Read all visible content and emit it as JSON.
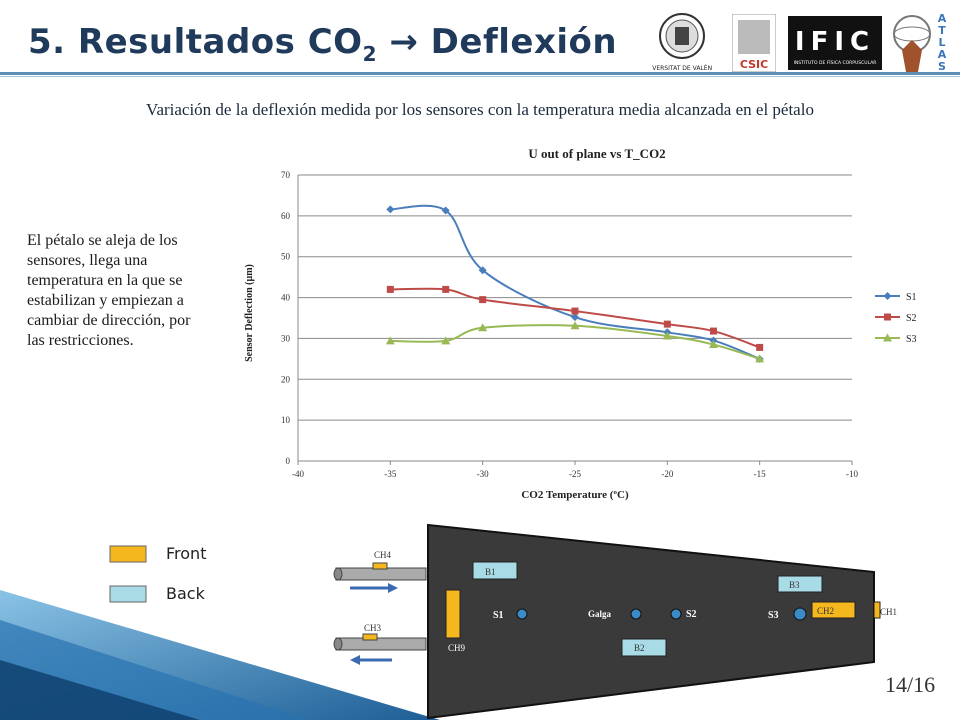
{
  "slide": {
    "title_main": "5. Resultados CO",
    "title_sub": "2",
    "title_arrow": "→",
    "title_rest": " Deflexión",
    "subtitle": "Variación de la deflexión medida por los sensores con la temperatura media alcanzada en el pétalo",
    "side_text": "El pétalo se aleja de los sensores, llega una temperatura en la que se estabilizan y empiezan a cambiar de dirección, por las restricciones.",
    "page_number": "14/16"
  },
  "logos": {
    "uv_text": "VNIVERSITAT DE VALÈNCIA",
    "csic_text": "CSIC",
    "ific_text": "IFIC",
    "ific_sub": "INSTITUTO DE FÍSICA CORPUSCULAR",
    "atlas_letters": [
      "A",
      "T",
      "L",
      "A",
      "S"
    ]
  },
  "chart_data": {
    "type": "line",
    "title": "U out of plane vs T_CO2",
    "xlabel": "CO2 Temperature (ºC)",
    "ylabel": "Sensor Deflection (µm)",
    "xlim": [
      -40,
      -10
    ],
    "ylim": [
      0,
      70
    ],
    "xticks": [
      -40,
      -35,
      -30,
      -25,
      -20,
      -15,
      -10
    ],
    "yticks": [
      0,
      10,
      20,
      30,
      40,
      50,
      60,
      70
    ],
    "grid": true,
    "legend_position": "right",
    "series": [
      {
        "name": "S1",
        "color": "#4a7ebb",
        "marker": "diamond",
        "x": [
          -35,
          -32,
          -30,
          -25,
          -20,
          -17.5,
          -15
        ],
        "y": [
          61.6,
          61.3,
          46.7,
          35.2,
          31.5,
          29.5,
          25.0
        ]
      },
      {
        "name": "S2",
        "color": "#be4b48",
        "marker": "square",
        "x": [
          -35,
          -32,
          -30,
          -25,
          -20,
          -17.5,
          -15
        ],
        "y": [
          42.0,
          42.0,
          39.5,
          36.7,
          33.5,
          31.8,
          27.8
        ]
      },
      {
        "name": "S3",
        "color": "#98b954",
        "marker": "triangle",
        "x": [
          -35,
          -32,
          -30,
          -25,
          -20,
          -17.5,
          -15
        ],
        "y": [
          29.4,
          29.4,
          32.6,
          33.1,
          30.6,
          28.5,
          25.0
        ]
      }
    ]
  },
  "legend": {
    "front_label": "Front",
    "back_label": "Back",
    "front_color": "#f5b71e",
    "back_color": "#a8dbe6"
  },
  "diagram": {
    "labels": {
      "ch4": "CH4",
      "ch3": "CH3",
      "ch9": "CH9",
      "ch2": "CH2",
      "ch1": "CH1",
      "b1": "B1",
      "b2": "B2",
      "b3": "B3",
      "s1": "S1",
      "s2": "S2",
      "s3": "S3",
      "galga": "Galga"
    }
  }
}
